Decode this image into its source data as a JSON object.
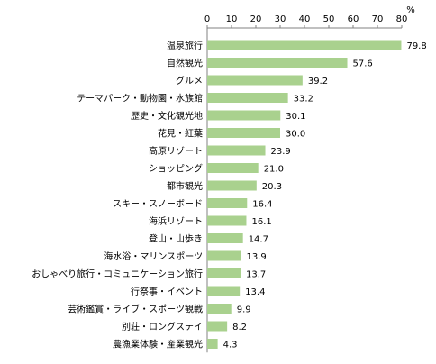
{
  "chart_data": {
    "type": "bar",
    "orientation": "horizontal",
    "unit": "%",
    "categories": [
      "温泉旅行",
      "自然観光",
      "グルメ",
      "テーマパーク・動物園・水族館",
      "歴史・文化観光地",
      "花見・紅葉",
      "高原リゾート",
      "ショッピング",
      "都市観光",
      "スキー・スノーボード",
      "海浜リゾート",
      "登山・山歩き",
      "海水浴・マリンスポーツ",
      "おしゃべり旅行・コミュニケーション旅行",
      "行祭事・イベント",
      "芸術鑑賞・ライブ・スポーツ観戦",
      "別荘・ロングステイ",
      "農漁業体験・産業観光"
    ],
    "values": [
      79.8,
      57.6,
      39.2,
      33.2,
      30.1,
      30.0,
      23.9,
      21.0,
      20.3,
      16.4,
      16.1,
      14.7,
      13.9,
      13.7,
      13.4,
      9.9,
      8.2,
      4.3
    ],
    "value_labels": [
      "79.8",
      "57.6",
      "39.2",
      "33.2",
      "30.1",
      "30.0",
      "23.9",
      "21.0",
      "20.3",
      "16.4",
      "16.1",
      "14.7",
      "13.9",
      "13.7",
      "13.4",
      "9.9",
      "8.2",
      "4.3"
    ],
    "xlim": [
      0,
      80
    ],
    "xticks": [
      0,
      10,
      20,
      30,
      40,
      50,
      60,
      70,
      80
    ],
    "x_axis_position": "top",
    "grid": false,
    "legend": "none",
    "title": "",
    "xlabel": "",
    "ylabel": "",
    "bar_color": "#a9d18e",
    "text_color": "#000000",
    "axis_color": "#808080"
  }
}
